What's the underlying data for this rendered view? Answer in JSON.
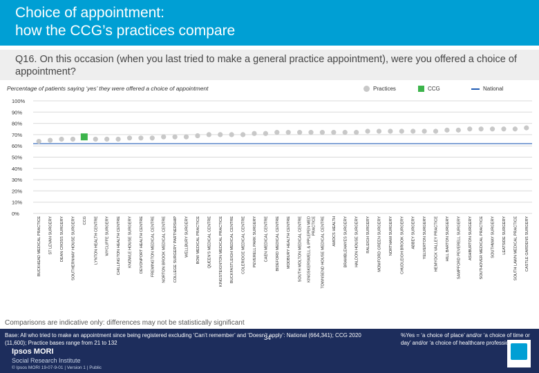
{
  "header": {
    "title": "Choice of appointment:\nhow the CCG’s practices compare"
  },
  "question": "Q16. On this occasion (when you last tried to make a general practice appointment), were you offered a choice of appointment?",
  "subtitle": "Percentage of patients saying ‘yes’ they were offered a choice of appointment",
  "legend": {
    "practices": "Practices",
    "ccg": "CCG",
    "national": "National"
  },
  "colors": {
    "header": "#009fd4",
    "practice_marker": "#c8c8c8",
    "ccg_marker": "#3cb44b",
    "national_line": "#1d5ab4",
    "footer": "#1d2d5c"
  },
  "chart_data": {
    "type": "scatter",
    "title": "Percentage of patients saying ‘yes’ they were offered a choice of appointment",
    "ylabel": "",
    "xlabel": "",
    "ylim": [
      0,
      100
    ],
    "yticks": [
      "0%",
      "10%",
      "20%",
      "30%",
      "40%",
      "50%",
      "60%",
      "70%",
      "80%",
      "90%",
      "100%"
    ],
    "national_value": 62,
    "categories": [
      "BUCKHEAD MEDICAL PRACTICE",
      "ST LEVAN SURGERY",
      "DEAN CROSS SURGERY",
      "SOUTHERNHAY HOUSE SURGERY",
      "CCG",
      "LYNTON HEALTH CENTRE",
      "WYCLIFFE SURGERY",
      "CHILLINGTON HEALTH CENTRE",
      "KNOWLE HOUSE SURGERY",
      "DEVONPORT HEALTH CENTRE",
      "FREMINGTON MEDICAL CENTRE",
      "NORTON BROOK MEDICAL CENTRE",
      "COLLEGE SURGERY PARTNERSHIP",
      "WELLBURY SURGERY",
      "BOW MEDICAL PRACTICE",
      "QUEEN'S MEDICAL CENTRE",
      "KINGSTEIGNTON MEDICAL PRACTICE",
      "BUCKFASTLEIGH MEDICAL CENTRE",
      "COLERIDGE MEDICAL CENTRE",
      "PEVERELL PARK SURGERY",
      "CAEN MEDICAL CENTRE",
      "BIDEFORD MEDICAL CENTRE",
      "MODBURY HEALTH CENTRE",
      "SOUTH MOLTON MEDICAL CENTRE",
      "KINGSKERSWELL & IPPLEPEN MED PRACTICE",
      "TOWNSEND HOUSE MEDICAL CENTRE",
      "AMOCS HEALTH",
      "BRAMBLEHAYES SURGERY",
      "HALDON HOUSE SURGERY",
      "RALEIGH SURGERY",
      "MOWFORD GREEN SURGERY",
      "NORTHAM SURGERY",
      "CHUDLEIGH BROOK SURGERY",
      "ABBEY SURGERY",
      "YELVERTON SURGERY",
      "HEMYOCK VALLEY PRACTICE",
      "HILL BARTON SURGERY",
      "SAMPFORD PEVERELL SURGERY",
      "ASHBURTON SURGERY",
      "SOUTHOVER MEDICAL PRACTICE",
      "SOUTHWAY SURGERY",
      "LEATSIDE SURGERY",
      "SOUTH LAWN MEDICAL PRACTICE",
      "CASTLE GARDENS SURGERY"
    ],
    "values": [
      64,
      65,
      66,
      66,
      68,
      66,
      66,
      66,
      67,
      67,
      67,
      68,
      68,
      68,
      69,
      70,
      70,
      70,
      70,
      71,
      71,
      72,
      72,
      72,
      72,
      72,
      72,
      72,
      72,
      73,
      73,
      73,
      73,
      73,
      73,
      73,
      74,
      74,
      75,
      75,
      75,
      75,
      75,
      76
    ],
    "highlight": "CCG"
  },
  "note": "Comparisons are indicative only: differences may not be statistically significant",
  "footer": {
    "base": "Base: All who tried to make an appointment since being registered excluding ‘Can’t remember’ and ‘Doesn’t apply’: National (664,341); CCG 2020 (11,600); Practice bases range from 21 to 132",
    "definition": "%Yes = ‘a choice of place’ and/or ‘a choice of time or day’ and/or ‘a choice of healthcare professional’",
    "logo": "Ipsos MORI",
    "logo_sub": "Social Research Institute",
    "reference": "© Ipsos MORI      19-07-9-01 | Version 1 | Public",
    "page": "34"
  }
}
